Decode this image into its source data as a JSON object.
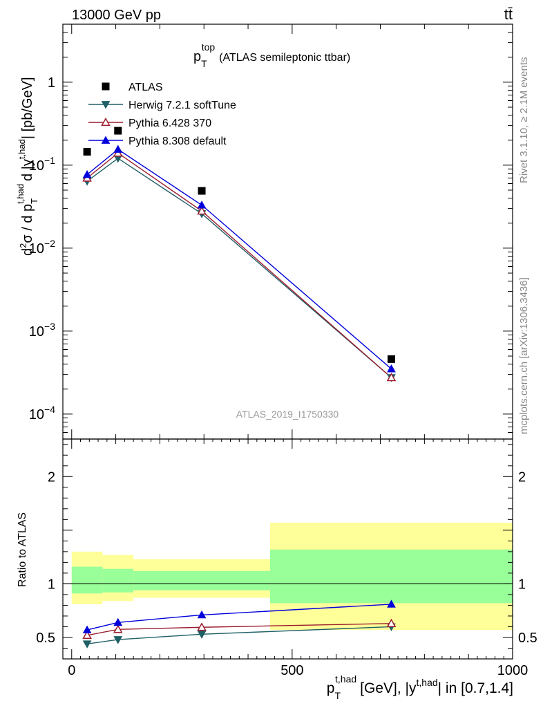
{
  "header": {
    "energy_label": "13000 GeV pp",
    "process_label": "tt̄"
  },
  "side_labels": {
    "rivet": "Rivet 3.1.10, ≥ 2.1M events",
    "mcplots": "mcplots.cern.ch [arXiv:1306.3436]"
  },
  "analysis_id": "ATLAS_2019_I1750330",
  "colors": {
    "data": "#000000",
    "herwig": "#1f5f66",
    "pythia6": "#9b1c2e",
    "pythia8": "#0000dd",
    "band_inner": "#99ff99",
    "band_outer": "#ffff99"
  },
  "chart_data": [
    {
      "type": "line",
      "panel": "main",
      "title_main": "p",
      "title_sub": "T",
      "title_sup": "top",
      "title_rest": "(ATLAS semileptonic ttbar)",
      "ylabel": "d²σ / d p_T^{t,had} d |y^{t,had}| [pb/GeV]",
      "yscale": "log",
      "ylim": [
        5e-05,
        5
      ],
      "xlim": [
        -20,
        1000
      ],
      "yticks": [
        {
          "v": 1,
          "m": "1",
          "e": ""
        },
        {
          "v": 0.1,
          "m": "10",
          "e": "−1"
        },
        {
          "v": 0.01,
          "m": "10",
          "e": "−2"
        },
        {
          "v": 0.001,
          "m": "10",
          "e": "−3"
        },
        {
          "v": 0.0001,
          "m": "10",
          "e": "−4"
        }
      ],
      "legend_position": "top-left",
      "series": [
        {
          "name": "ATLAS",
          "kind": "data",
          "marker": "square",
          "x": [
            35,
            105,
            295,
            725
          ],
          "y": [
            0.145,
            0.26,
            0.049,
            0.00046
          ]
        },
        {
          "name": "Herwig 7.2.1 softTune",
          "kind": "mc",
          "marker": "triangle-down",
          "color_key": "herwig",
          "x": [
            35,
            105,
            295,
            725
          ],
          "y": [
            0.064,
            0.121,
            0.026,
            0.000275
          ]
        },
        {
          "name": "Pythia 6.428 370",
          "kind": "mc",
          "marker": "triangle-open",
          "color_key": "pythia6",
          "x": [
            35,
            105,
            295,
            725
          ],
          "y": [
            0.07,
            0.14,
            0.028,
            0.000275
          ]
        },
        {
          "name": "Pythia 8.308 default",
          "kind": "mc",
          "marker": "triangle-up",
          "color_key": "pythia8",
          "x": [
            35,
            105,
            295,
            725
          ],
          "y": [
            0.077,
            0.155,
            0.033,
            0.00035
          ]
        }
      ]
    },
    {
      "type": "line",
      "panel": "ratio",
      "ylabel": "Ratio to ATLAS",
      "xlabel_main": "p",
      "xlabel_sub": "T",
      "xlabel_sup": "t,had",
      "xlabel_mid": "[GeV], |y",
      "xlabel_sup2": "t,had",
      "xlabel_rest": "| in [0.7,1.4]",
      "ylim": [
        0.3,
        2.35
      ],
      "xlim": [
        -20,
        1000
      ],
      "yticks": [
        0.5,
        1,
        2
      ],
      "xticks": [
        0,
        500,
        1000
      ],
      "bands": [
        {
          "x0": 0,
          "x1": 70,
          "inner": [
            0.91,
            1.16
          ],
          "outer": [
            0.81,
            1.3
          ]
        },
        {
          "x0": 70,
          "x1": 140,
          "inner": [
            0.92,
            1.14
          ],
          "outer": [
            0.84,
            1.27
          ]
        },
        {
          "x0": 140,
          "x1": 450,
          "inner": [
            0.94,
            1.12
          ],
          "outer": [
            0.87,
            1.23
          ]
        },
        {
          "x0": 450,
          "x1": 1000,
          "inner": [
            0.82,
            1.32
          ],
          "outer": [
            0.57,
            1.57
          ]
        }
      ],
      "series": [
        {
          "name": "Herwig 7.2.1 softTune",
          "marker": "triangle-down",
          "color_key": "herwig",
          "x": [
            35,
            105,
            295,
            725
          ],
          "y": [
            0.44,
            0.48,
            0.53,
            0.6
          ],
          "err": [
            0,
            0,
            0,
            0.03
          ]
        },
        {
          "name": "Pythia 6.428 370",
          "marker": "triangle-open",
          "color_key": "pythia6",
          "x": [
            35,
            105,
            295,
            725
          ],
          "y": [
            0.52,
            0.575,
            0.595,
            0.63
          ],
          "err": [
            0,
            0,
            0,
            0.03
          ]
        },
        {
          "name": "Pythia 8.308 default",
          "marker": "triangle-up",
          "color_key": "pythia8",
          "x": [
            35,
            105,
            295,
            725
          ],
          "y": [
            0.57,
            0.64,
            0.71,
            0.81
          ],
          "err": [
            0,
            0,
            0,
            0.03
          ]
        }
      ]
    }
  ]
}
